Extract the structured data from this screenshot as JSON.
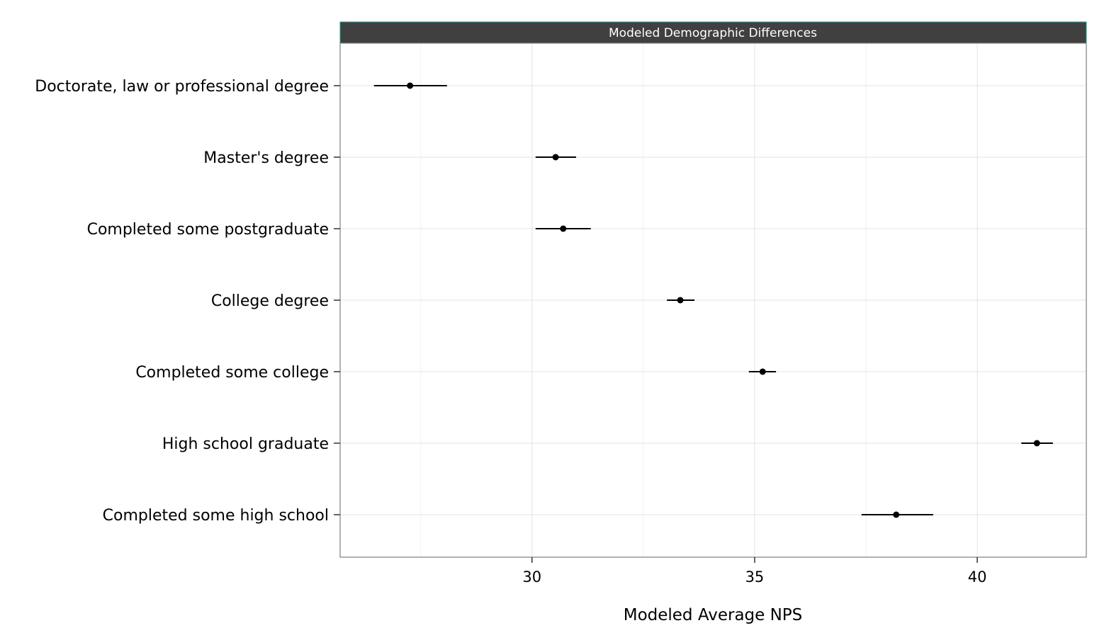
{
  "chart_data": {
    "type": "scatter",
    "subtype": "point-range",
    "strip_title": "Modeled Demographic Differences",
    "xlabel": "Modeled Average NPS",
    "ylabel": "",
    "xlim": [
      25.69,
      42.45
    ],
    "x_ticks": [
      30,
      35,
      40
    ],
    "x_tick_labels": [
      "30",
      "35",
      "40"
    ],
    "x_minor_grid": [
      27.5,
      32.5,
      37.5,
      42.5
    ],
    "grid": true,
    "categories": [
      "Doctorate, law or professional degree",
      "Master's degree",
      "Completed some postgraduate",
      "College degree",
      "Completed some college",
      "High school graduate",
      "Completed some high school"
    ],
    "values": [
      27.26,
      30.53,
      30.7,
      33.33,
      35.18,
      41.34,
      38.18
    ],
    "lower": [
      26.45,
      30.08,
      30.08,
      33.03,
      34.87,
      40.99,
      37.4
    ],
    "upper": [
      28.09,
      30.99,
      31.32,
      33.65,
      35.48,
      41.7,
      39.01
    ],
    "colors": {
      "strip": "#404040",
      "strip_border": "#2a9d8f",
      "point": "#000000",
      "grid": "#e6e6e6",
      "panel_border": "#7f7f7f"
    }
  }
}
